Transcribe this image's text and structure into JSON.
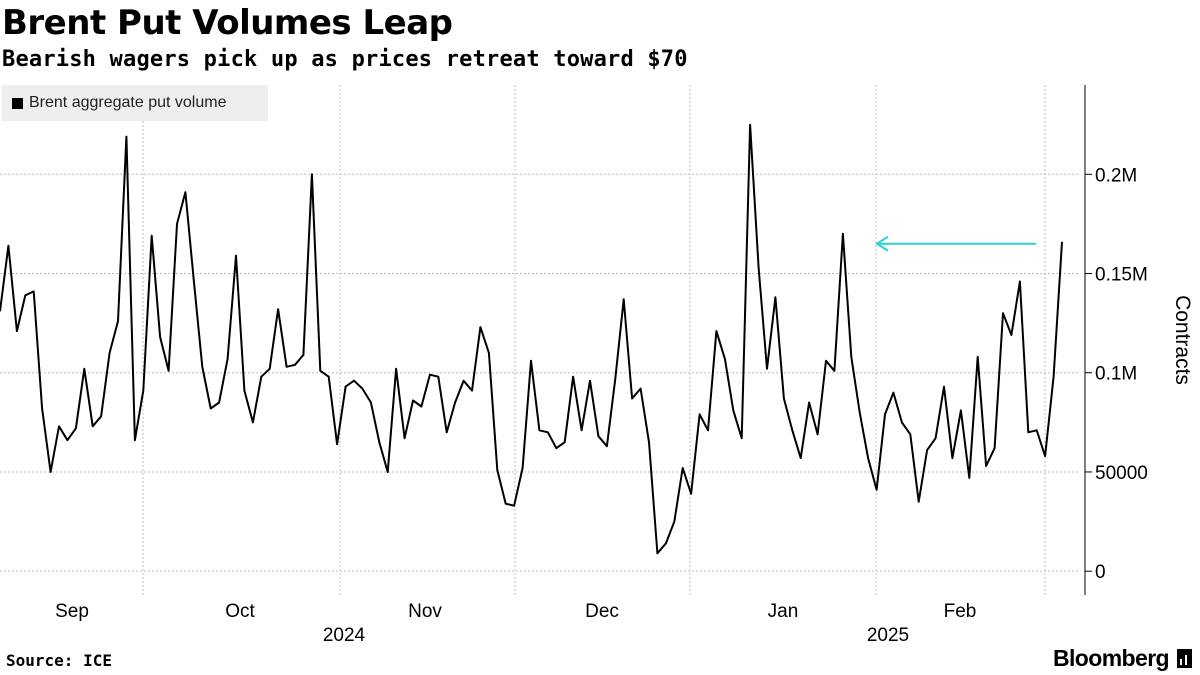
{
  "chart_data": {
    "type": "line",
    "title": "Brent Put Volumes Leap",
    "subtitle": "Bearish wagers pick up as prices retreat toward $70",
    "ylabel": "Contracts",
    "xlabel": "",
    "ylim": [
      -12000,
      245000
    ],
    "yticks": [
      {
        "value": 0,
        "label": "0"
      },
      {
        "value": 50000,
        "label": "50000"
      },
      {
        "value": 100000,
        "label": "0.1M"
      },
      {
        "value": 150000,
        "label": "0.15M"
      },
      {
        "value": 200000,
        "label": "0.2M"
      }
    ],
    "month_labels": [
      "Sep",
      "Oct",
      "Nov",
      "Dec",
      "Jan",
      "Feb"
    ],
    "year_labels": [
      "2024",
      "2025"
    ],
    "series": [
      {
        "name": "Brent aggregate put volume",
        "color": "#000000",
        "values": [
          131000,
          164000,
          121000,
          139000,
          141000,
          82000,
          50000,
          73000,
          66000,
          72000,
          102000,
          73000,
          78000,
          110000,
          126000,
          219000,
          66000,
          91000,
          169000,
          118000,
          101000,
          175000,
          191000,
          146000,
          103000,
          82000,
          85000,
          107000,
          159000,
          91000,
          75000,
          98000,
          102000,
          132000,
          103000,
          104000,
          109000,
          200000,
          101000,
          98000,
          64000,
          93000,
          96000,
          92000,
          85000,
          65000,
          50000,
          102000,
          67000,
          86000,
          83000,
          99000,
          98000,
          70000,
          85000,
          96000,
          91000,
          123000,
          110000,
          51000,
          34000,
          33000,
          52000,
          106000,
          71000,
          70000,
          62000,
          65000,
          98000,
          71000,
          96000,
          68000,
          63000,
          97000,
          137000,
          87000,
          92000,
          65000,
          9000,
          14000,
          25000,
          52000,
          39000,
          79000,
          71000,
          121000,
          107000,
          81000,
          67000,
          225000,
          153000,
          102000,
          138000,
          87000,
          71000,
          57000,
          85000,
          69000,
          106000,
          101000,
          170000,
          108000,
          80000,
          57000,
          41000,
          79000,
          90000,
          75000,
          69000,
          35000,
          61000,
          67000,
          93000,
          57000,
          81000,
          47000,
          108000,
          53000,
          62000,
          130000,
          119000,
          146000,
          70000,
          71000,
          58000,
          98000,
          166000
        ]
      }
    ],
    "annotation": {
      "type": "arrow",
      "color": "#2ad1d3",
      "value": 165000
    }
  },
  "legend": {
    "label": "Brent aggregate put volume"
  },
  "footer": {
    "source": "Source: ICE",
    "brand": "Bloomberg"
  }
}
